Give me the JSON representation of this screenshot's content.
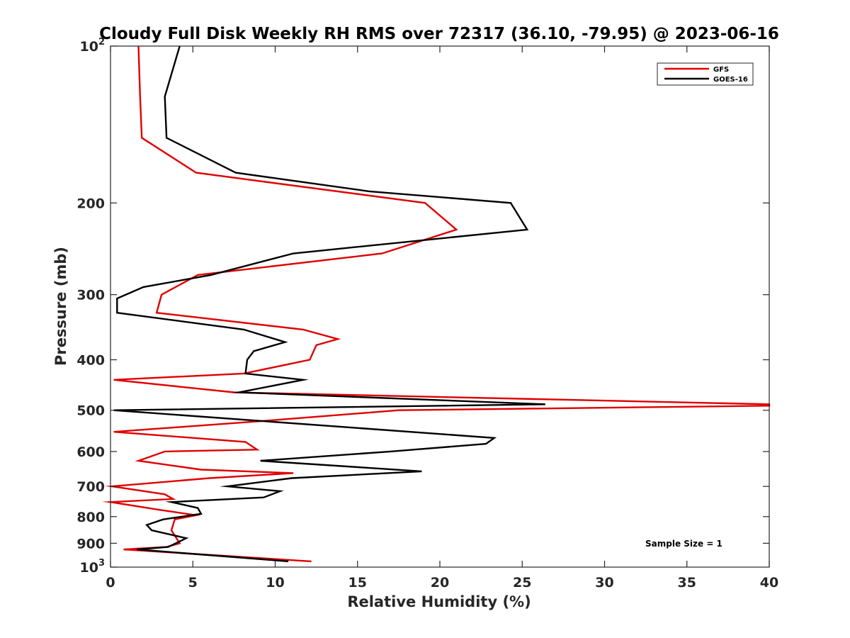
{
  "chart_data": {
    "type": "line",
    "title": "Cloudy Full Disk Weekly RH RMS over 72317 (36.10, -79.95) @ 2023-06-16",
    "xlabel": "Relative Humidity (%)",
    "ylabel": "Pressure (mb)",
    "xlim": [
      0,
      40
    ],
    "ylim": [
      100,
      1000
    ],
    "y_scale": "log",
    "y_reversed": true,
    "x_ticks": [
      0,
      5,
      10,
      15,
      20,
      25,
      30,
      35,
      40
    ],
    "x_tick_labels": [
      "0",
      "5",
      "10",
      "15",
      "20",
      "25",
      "30",
      "35",
      "40"
    ],
    "y_ticks": [
      200,
      300,
      400,
      500,
      600,
      700,
      800,
      900
    ],
    "y_tick_labels": [
      "200",
      "300",
      "400",
      "500",
      "600",
      "700",
      "800",
      "900"
    ],
    "y_end_ticks": [
      {
        "value": 100,
        "base": "10",
        "exp": "2"
      },
      {
        "value": 1000,
        "base": "10",
        "exp": "3"
      }
    ],
    "grid": false,
    "legend_position": "top-right",
    "annotation": "Sample Size = 1",
    "series": [
      {
        "name": "GFS",
        "color": "#e00000",
        "points": [
          [
            1.7,
            100
          ],
          [
            1.8,
            125
          ],
          [
            1.9,
            150
          ],
          [
            5.2,
            175
          ],
          [
            19.1,
            200
          ],
          [
            21.0,
            225
          ],
          [
            16.5,
            250
          ],
          [
            5.3,
            275
          ],
          [
            3.1,
            300
          ],
          [
            2.8,
            325
          ],
          [
            11.7,
            350
          ],
          [
            13.8,
            365
          ],
          [
            12.5,
            375
          ],
          [
            12.1,
            400
          ],
          [
            8.1,
            425
          ],
          [
            0.2,
            437
          ],
          [
            7.5,
            462
          ],
          [
            40.0,
            487
          ],
          [
            40.0,
            490
          ],
          [
            17.5,
            500
          ],
          [
            9.0,
            525
          ],
          [
            0.2,
            550
          ],
          [
            8.2,
            575
          ],
          [
            8.9,
            595
          ],
          [
            3.3,
            600
          ],
          [
            1.7,
            625
          ],
          [
            5.5,
            650
          ],
          [
            11.1,
            660
          ],
          [
            6.0,
            675
          ],
          [
            0.1,
            700
          ],
          [
            3.3,
            725
          ],
          [
            3.8,
            740
          ],
          [
            0.0,
            750
          ],
          [
            2.8,
            775
          ],
          [
            5.2,
            795
          ],
          [
            3.9,
            810
          ],
          [
            3.7,
            850
          ],
          [
            4.2,
            900
          ],
          [
            3.4,
            915
          ],
          [
            0.8,
            925
          ],
          [
            12.2,
            975
          ]
        ]
      },
      {
        "name": "GOES-16",
        "color": "#000000",
        "points": [
          [
            4.2,
            100
          ],
          [
            3.3,
            125
          ],
          [
            3.4,
            150
          ],
          [
            7.6,
            175
          ],
          [
            15.7,
            190
          ],
          [
            24.3,
            200
          ],
          [
            25.3,
            225
          ],
          [
            11.1,
            250
          ],
          [
            6.1,
            275
          ],
          [
            2.0,
            290
          ],
          [
            0.4,
            305
          ],
          [
            0.4,
            325
          ],
          [
            8.1,
            350
          ],
          [
            10.6,
            370
          ],
          [
            8.7,
            385
          ],
          [
            8.3,
            400
          ],
          [
            8.2,
            425
          ],
          [
            11.7,
            437
          ],
          [
            7.8,
            462
          ],
          [
            26.4,
            487
          ],
          [
            0.2,
            500
          ],
          [
            23.3,
            565
          ],
          [
            22.8,
            580
          ],
          [
            17.0,
            600
          ],
          [
            9.1,
            625
          ],
          [
            18.9,
            655
          ],
          [
            11.0,
            675
          ],
          [
            7.1,
            700
          ],
          [
            10.3,
            715
          ],
          [
            9.3,
            735
          ],
          [
            3.7,
            750
          ],
          [
            5.3,
            770
          ],
          [
            5.5,
            790
          ],
          [
            3.2,
            810
          ],
          [
            2.2,
            830
          ],
          [
            2.5,
            850
          ],
          [
            4.6,
            880
          ],
          [
            3.5,
            915
          ],
          [
            1.6,
            925
          ],
          [
            10.8,
            975
          ]
        ]
      }
    ]
  }
}
